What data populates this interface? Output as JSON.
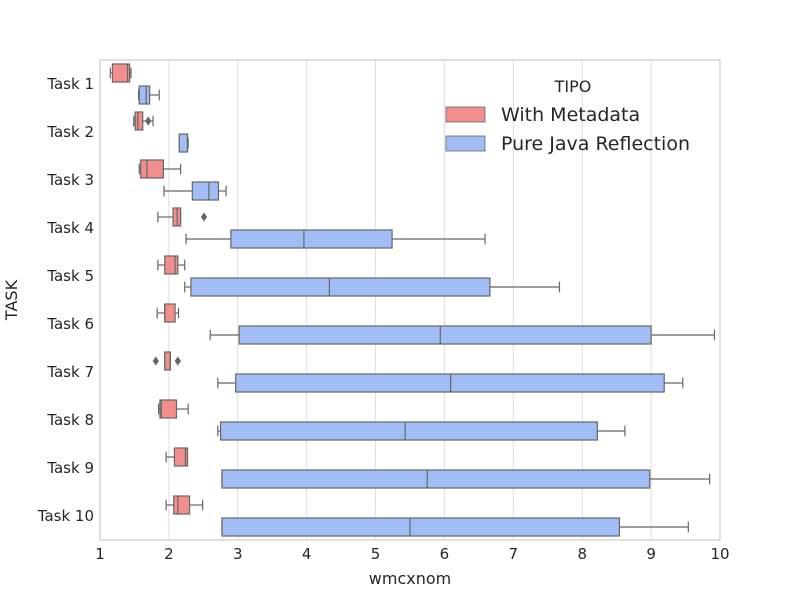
{
  "chart_data": {
    "type": "box",
    "orientation": "horizontal",
    "xlabel": "wmcxnom",
    "ylabel": "TASK",
    "xlim": [
      1,
      10
    ],
    "xticks": [
      "1",
      "2",
      "3",
      "4",
      "5",
      "6",
      "7",
      "8",
      "9",
      "10"
    ],
    "grid": "vertical",
    "legend": {
      "title": "TIPO",
      "placement": "top-right",
      "entries": [
        "With Metadata",
        "Pure Java Reflection"
      ]
    },
    "categories": [
      "Task 1",
      "Task 2",
      "Task 3",
      "Task 4",
      "Task 5",
      "Task 6",
      "Task 7",
      "Task 8",
      "Task 9",
      "Task 10"
    ],
    "series": [
      {
        "name": "With Metadata",
        "color": "#f28e8e",
        "boxes": [
          {
            "whislo": 1.15,
            "q1": 1.18,
            "med": 1.4,
            "q3": 1.43,
            "whishi": 1.45,
            "fliers": []
          },
          {
            "whislo": 1.49,
            "q1": 1.51,
            "med": 1.55,
            "q3": 1.62,
            "whishi": 1.77,
            "fliers": [
              1.7
            ]
          },
          {
            "whislo": 1.57,
            "q1": 1.59,
            "med": 1.68,
            "q3": 1.92,
            "whishi": 2.17,
            "fliers": []
          },
          {
            "whislo": 1.84,
            "q1": 2.06,
            "med": 2.12,
            "q3": 2.17,
            "whishi": 2.17,
            "fliers": [
              2.51
            ]
          },
          {
            "whislo": 1.84,
            "q1": 1.94,
            "med": 2.09,
            "q3": 2.13,
            "whishi": 2.23,
            "fliers": []
          },
          {
            "whislo": 1.83,
            "q1": 1.94,
            "med": 1.94,
            "q3": 2.09,
            "whishi": 2.14,
            "fliers": []
          },
          {
            "whislo": 1.94,
            "q1": 1.94,
            "med": 2.02,
            "q3": 2.02,
            "whishi": 2.02,
            "fliers": [
              1.81,
              2.13
            ]
          },
          {
            "whislo": 1.85,
            "q1": 1.87,
            "med": 1.89,
            "q3": 2.11,
            "whishi": 2.28,
            "fliers": []
          },
          {
            "whislo": 1.96,
            "q1": 2.08,
            "med": 2.24,
            "q3": 2.27,
            "whishi": 2.27,
            "fliers": []
          },
          {
            "whislo": 1.96,
            "q1": 2.07,
            "med": 2.13,
            "q3": 2.3,
            "whishi": 2.49,
            "fliers": []
          }
        ]
      },
      {
        "name": "Pure Java Reflection",
        "color": "#a2bcf5",
        "boxes": [
          {
            "whislo": 1.56,
            "q1": 1.57,
            "med": 1.67,
            "q3": 1.72,
            "whishi": 1.86,
            "fliers": []
          },
          {
            "whislo": 2.15,
            "q1": 2.15,
            "med": 2.27,
            "q3": 2.27,
            "whishi": 2.28,
            "fliers": []
          },
          {
            "whislo": 1.93,
            "q1": 2.34,
            "med": 2.58,
            "q3": 2.72,
            "whishi": 2.83,
            "fliers": []
          },
          {
            "whislo": 2.25,
            "q1": 2.9,
            "med": 3.96,
            "q3": 5.24,
            "whishi": 6.59,
            "fliers": []
          },
          {
            "whislo": 2.23,
            "q1": 2.32,
            "med": 4.33,
            "q3": 6.66,
            "whishi": 7.67,
            "fliers": []
          },
          {
            "whislo": 2.6,
            "q1": 3.02,
            "med": 5.94,
            "q3": 9.0,
            "whishi": 9.92,
            "fliers": []
          },
          {
            "whislo": 2.71,
            "q1": 2.97,
            "med": 6.09,
            "q3": 9.19,
            "whishi": 9.46,
            "fliers": []
          },
          {
            "whislo": 2.71,
            "q1": 2.75,
            "med": 5.43,
            "q3": 8.22,
            "whishi": 8.62,
            "fliers": []
          },
          {
            "whislo": 2.77,
            "q1": 2.77,
            "med": 5.75,
            "q3": 8.98,
            "whishi": 9.85,
            "fliers": []
          },
          {
            "whislo": 2.77,
            "q1": 2.77,
            "med": 5.5,
            "q3": 8.54,
            "whishi": 9.54,
            "fliers": []
          }
        ]
      }
    ]
  }
}
